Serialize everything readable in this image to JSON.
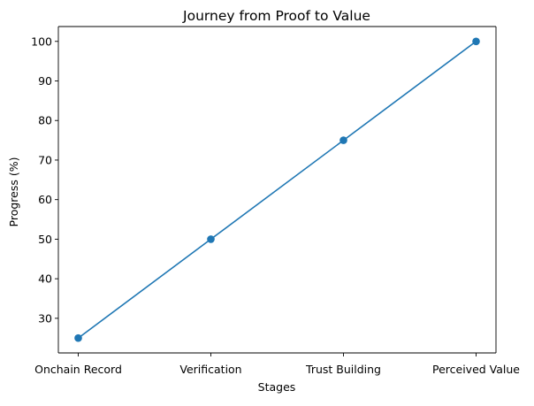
{
  "chart_data": {
    "type": "line",
    "title": "Journey from Proof to Value",
    "xlabel": "Stages",
    "ylabel": "Progress (%)",
    "categories": [
      "Onchain Record",
      "Verification",
      "Trust Building",
      "Perceived Value"
    ],
    "series": [
      {
        "values": [
          25,
          50,
          75,
          100
        ],
        "color": "#1f77b4",
        "marker": "circle"
      }
    ],
    "yticks": [
      30,
      40,
      50,
      60,
      70,
      80,
      90,
      100
    ],
    "ylim": [
      21.25,
      103.75
    ],
    "grid": false,
    "legend": "none"
  }
}
